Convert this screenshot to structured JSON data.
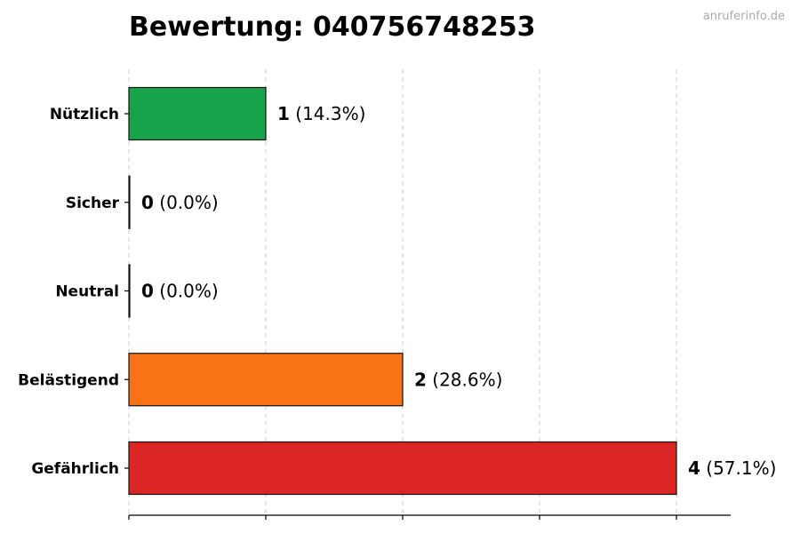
{
  "watermark": "anruferinfo.de",
  "chart_data": {
    "type": "bar",
    "orientation": "horizontal",
    "title": "Bewertung: 040756748253",
    "categories": [
      "Nützlich",
      "Sicher",
      "Neutral",
      "Belästigend",
      "Gefährlich"
    ],
    "values": [
      1,
      0,
      0,
      2,
      4
    ],
    "percent_labels": [
      "(14.3%)",
      "(0.0%)",
      "(0.0%)",
      "(28.6%)",
      "(57.1%)"
    ],
    "colors": [
      "#16a34a",
      "#22c55e",
      "#9ca3af",
      "#f97316",
      "#dc2626"
    ],
    "xlim": [
      0,
      4.4
    ],
    "xgrid": [
      0,
      1,
      2,
      3,
      4
    ],
    "grid": true
  }
}
